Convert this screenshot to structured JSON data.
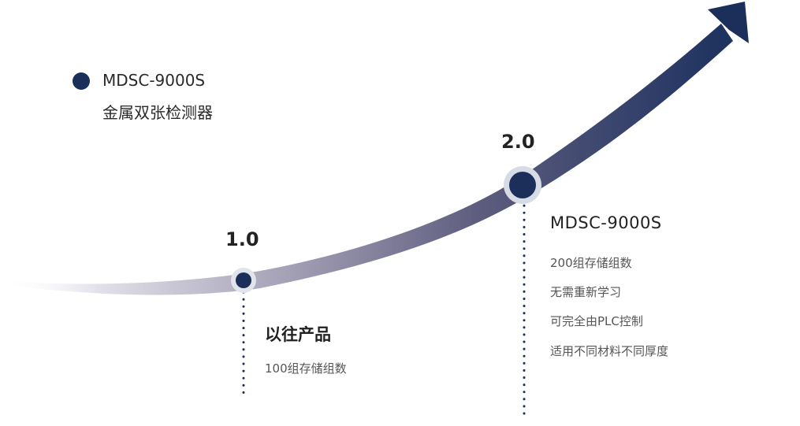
{
  "legend": {
    "model": "MDSC-9000S",
    "name": "金属双张检测器"
  },
  "milestones": [
    {
      "version": "1.0",
      "title": "以往产品",
      "features": [
        "100组存储组数"
      ]
    },
    {
      "version": "2.0",
      "title": "MDSC-9000S",
      "features": [
        "200组存储组数",
        "无需重新学习",
        "可完全由PLC控制",
        "适用不同材料不同厚度"
      ]
    }
  ],
  "colors": {
    "navy": "#1c2f5a",
    "curve_start": "#e3e1ea",
    "curve_mid": "#8c88a3",
    "curve_end": "#1f3360",
    "halo": "#d6dbe6",
    "text": "#2b2b2b"
  }
}
